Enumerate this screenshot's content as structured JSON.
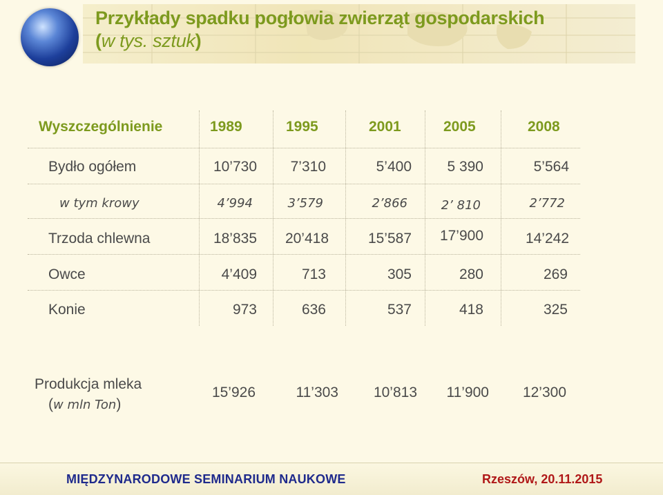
{
  "title": {
    "line1": "Przykłady spadku pogłowia zwierząt gospodarskich",
    "open_paren": "(",
    "unit": "w tys. sztuk",
    "close_paren": ")"
  },
  "table": {
    "header_label": "Wyszczególnienie",
    "years": [
      "1989",
      "1995",
      "2001",
      "2005",
      "2008"
    ],
    "rows": [
      {
        "label": "Bydło ogółem",
        "italic": false,
        "values": [
          "10’730",
          "7’310",
          "5’400",
          "5 390",
          "5’564"
        ]
      },
      {
        "label": "w tym krowy",
        "italic": true,
        "values": [
          "4’994",
          "3’579",
          "2’866",
          "2’ 810",
          "2’772"
        ]
      },
      {
        "label": "Trzoda chlewna",
        "italic": false,
        "values": [
          "18’835",
          "20’418",
          "15’587",
          "17’900",
          "14’242"
        ]
      },
      {
        "label": "Owce",
        "italic": false,
        "values": [
          "4’409",
          "713",
          "305",
          "280",
          "269"
        ]
      },
      {
        "label": "Konie",
        "italic": false,
        "values": [
          "973",
          "636",
          "537",
          "418",
          "325"
        ]
      }
    ],
    "milk": {
      "label_line1": "Produkcja mleka",
      "label_open": "(",
      "label_unit": "w mln Ton",
      "label_close": ")",
      "values": [
        "15’926",
        "11’303",
        "10’813",
        "11’900",
        "12’300"
      ]
    }
  },
  "footer": {
    "left": "MIĘDZYNARODOWE  SEMINARIUM  NAUKOWE",
    "right": "Rzeszów, 20.11.2015"
  },
  "colors": {
    "title": "#7d9a1e",
    "header": "#7d9a1e",
    "text": "#4a4a4a",
    "footer_left": "#1f2a8c",
    "footer_right": "#b01818"
  },
  "icons": {
    "globe": "globe-icon"
  }
}
